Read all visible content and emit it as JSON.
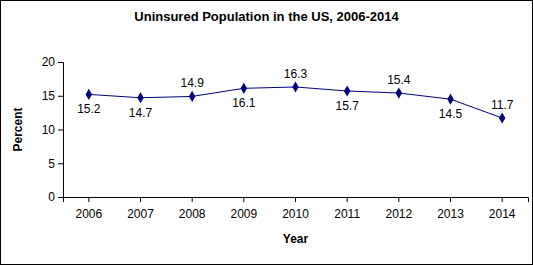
{
  "chart_data": {
    "type": "line",
    "title": "Uninsured Population in the US, 2006-2014",
    "x_label": "Year",
    "y_label": "Percent",
    "categories": [
      "2006",
      "2007",
      "2008",
      "2009",
      "2010",
      "2011",
      "2012",
      "2013",
      "2014"
    ],
    "values": [
      15.2,
      14.7,
      14.9,
      16.1,
      16.3,
      15.7,
      15.4,
      14.5,
      11.7
    ],
    "color": "#000080",
    "marker": "diamond",
    "line_style": "solid",
    "ylim": [
      0,
      20
    ],
    "yticks": [
      0,
      5,
      10,
      15,
      20
    ],
    "grid": false,
    "data_labels": true
  }
}
